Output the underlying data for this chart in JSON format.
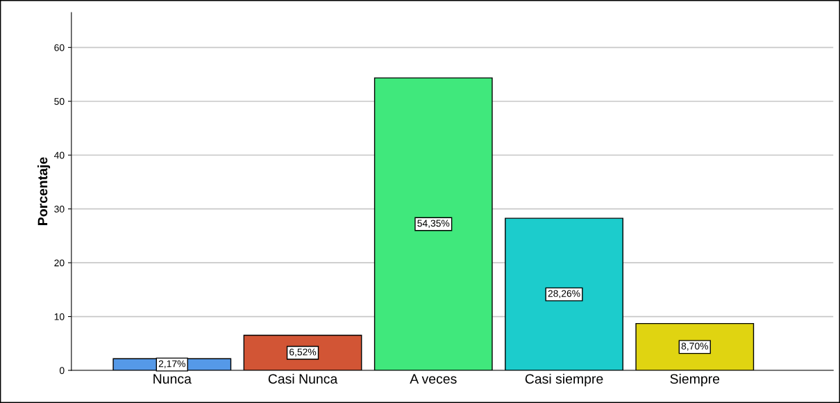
{
  "chart_data": {
    "type": "bar",
    "ylabel": "Porcentaje",
    "categories": [
      "Nunca",
      "Casi Nunca",
      "A veces",
      "Casi siempre",
      "Siempre"
    ],
    "values": [
      2.17,
      6.52,
      54.35,
      28.26,
      8.7
    ],
    "value_labels": [
      "2,17%",
      "6,52%",
      "54,35%",
      "28,26%",
      "8,70%"
    ],
    "colors": [
      "#5599e8",
      "#d25535",
      "#40e87c",
      "#1ccccc",
      "#e0d411"
    ],
    "ylim": [
      0,
      66.5
    ],
    "yticks": [
      0,
      10,
      20,
      30,
      40,
      50,
      60
    ],
    "grid": "y"
  }
}
